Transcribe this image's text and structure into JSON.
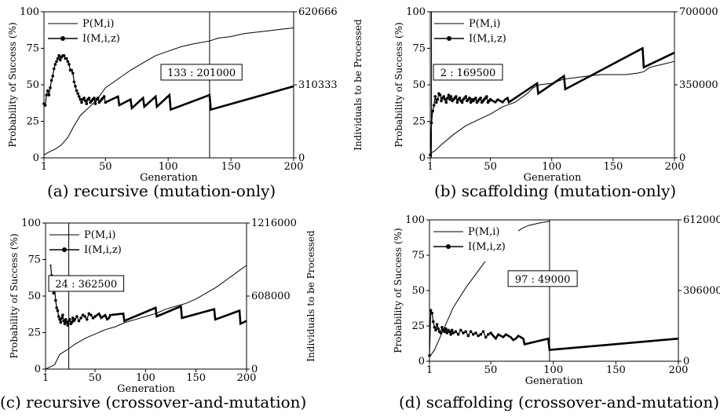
{
  "figure": {
    "captions": [
      "(a) recursive (mutation-only)",
      "(b) scaffolding (mutation-only)",
      "(c) recursive (crossover-and-mutation)",
      "(d) scaffolding (crossover-and-mutation)"
    ]
  },
  "chart_data": [
    {
      "type": "line",
      "xlabel": "Generation",
      "ylabel": "Probability of Success (%)",
      "y2label": "Individuals to be Processed",
      "xlim": [
        1,
        200
      ],
      "ylim": [
        0,
        100
      ],
      "y2lim": [
        0,
        620666
      ],
      "xticks": [
        "1",
        "50",
        "100",
        "150",
        "200"
      ],
      "yticks": [
        "0",
        "25",
        "50",
        "75",
        "100"
      ],
      "y2ticks": [
        "0",
        "310333",
        "620666"
      ],
      "legend": {
        "position": "top-left",
        "entries": [
          "P(M,i)",
          "I(M,i,z)"
        ]
      },
      "marker": {
        "x": 133,
        "label": "133 : 201000"
      },
      "series": [
        {
          "name": "P(M,i)",
          "axis": "left",
          "x": [
            1,
            5,
            10,
            15,
            20,
            25,
            30,
            35,
            40,
            45,
            50,
            60,
            70,
            80,
            90,
            100,
            110,
            120,
            133,
            140,
            150,
            160,
            170,
            180,
            190,
            200
          ],
          "values": [
            2,
            4,
            6,
            9,
            14,
            22,
            29,
            33,
            37,
            42,
            48,
            54,
            60,
            65,
            70,
            73,
            76,
            78,
            80,
            82,
            83,
            85,
            86,
            87,
            88,
            89
          ]
        },
        {
          "name": "I(M,i,z)",
          "axis": "left",
          "x": [
            1,
            2,
            3,
            4,
            5,
            6,
            7,
            8,
            9,
            10,
            11,
            12,
            13,
            14,
            15,
            16,
            17,
            18,
            19,
            20,
            21,
            22,
            23,
            24,
            25,
            26,
            27,
            28,
            29,
            30,
            31,
            32,
            33,
            34,
            35,
            36,
            37,
            38,
            39,
            40,
            41,
            42,
            43,
            44,
            45,
            46,
            47,
            48,
            49,
            50,
            60,
            61,
            70,
            71,
            80,
            81,
            90,
            91,
            101,
            102,
            133,
            134,
            200
          ],
          "values": [
            37,
            36,
            43,
            46,
            43,
            48,
            53,
            56,
            61,
            64,
            66,
            68,
            70,
            67,
            69,
            70,
            70,
            68,
            68,
            66,
            64,
            60,
            60,
            58,
            52,
            49,
            46,
            44,
            42,
            40,
            38,
            40,
            41,
            39,
            37,
            40,
            41,
            38,
            39,
            40,
            41,
            37,
            40,
            41,
            38,
            39,
            40,
            41,
            42,
            38,
            42,
            36,
            40,
            34,
            41,
            35,
            42,
            35,
            43,
            33,
            43,
            33,
            49
          ]
        }
      ]
    },
    {
      "type": "line",
      "xlabel": "Generation",
      "ylabel": "Probability of Success (%)",
      "y2label": "Individuals to be Processed",
      "xlim": [
        1,
        200
      ],
      "ylim": [
        0,
        100
      ],
      "y2lim": [
        0,
        700000
      ],
      "xticks": [
        "1",
        "50",
        "100",
        "150",
        "200"
      ],
      "yticks": [
        "0",
        "25",
        "50",
        "75",
        "100"
      ],
      "y2ticks": [
        "0",
        "350000",
        "700000"
      ],
      "legend": {
        "position": "top-left",
        "entries": [
          "P(M,i)",
          "I(M,i,z)"
        ]
      },
      "marker": {
        "x": 2,
        "label": "2 : 169500"
      },
      "series": [
        {
          "name": "P(M,i)",
          "axis": "left",
          "x": [
            1,
            5,
            10,
            20,
            30,
            40,
            50,
            60,
            70,
            80,
            85,
            90,
            100,
            110,
            120,
            130,
            140,
            150,
            160,
            170,
            175,
            180,
            190,
            200
          ],
          "values": [
            3,
            5,
            9,
            16,
            22,
            26,
            30,
            35,
            38,
            44,
            48,
            50,
            51,
            54,
            55,
            56,
            57,
            57,
            57,
            58,
            59,
            62,
            64,
            66
          ]
        },
        {
          "name": "I(M,i,z)",
          "axis": "left",
          "x": [
            1,
            2,
            3,
            4,
            5,
            6,
            7,
            8,
            9,
            10,
            11,
            12,
            13,
            14,
            15,
            16,
            17,
            18,
            19,
            20,
            21,
            22,
            23,
            24,
            25,
            26,
            27,
            28,
            29,
            30,
            31,
            32,
            33,
            34,
            35,
            36,
            37,
            38,
            39,
            40,
            41,
            42,
            43,
            44,
            45,
            46,
            47,
            48,
            49,
            50,
            52,
            54,
            56,
            58,
            60,
            62,
            64,
            65,
            88,
            89,
            110,
            111,
            174,
            175,
            200
          ],
          "values": [
            2,
            24,
            32,
            36,
            42,
            38,
            40,
            44,
            43,
            39,
            41,
            42,
            40,
            38,
            41,
            43,
            40,
            42,
            39,
            40,
            41,
            42,
            38,
            40,
            41,
            39,
            38,
            40,
            41,
            42,
            39,
            40,
            41,
            38,
            40,
            39,
            40,
            41,
            38,
            39,
            40,
            41,
            38,
            39,
            40,
            41,
            42,
            38,
            39,
            40,
            39,
            38,
            40,
            39,
            38,
            40,
            41,
            38,
            51,
            44,
            56,
            47,
            75,
            62,
            72
          ]
        }
      ]
    },
    {
      "type": "line",
      "xlabel": "Generation",
      "ylabel": "Probability of Success (%)",
      "y2label": "Individuals to be Processed",
      "xlim": [
        1,
        200
      ],
      "ylim": [
        0,
        100
      ],
      "y2lim": [
        0,
        1216000
      ],
      "xticks": [
        "1",
        "50",
        "100",
        "150",
        "200"
      ],
      "yticks": [
        "0",
        "25",
        "50",
        "75",
        "100"
      ],
      "y2ticks": [
        "0",
        "608000",
        "1216000"
      ],
      "legend": {
        "position": "top-left",
        "entries": [
          "P(M,i)",
          "I(M,i,z)"
        ]
      },
      "marker": {
        "x": 24,
        "label": "24 : 362500"
      },
      "series": [
        {
          "name": "P(M,i)",
          "axis": "left",
          "x": [
            1,
            10,
            15,
            24,
            30,
            40,
            50,
            60,
            70,
            80,
            90,
            100,
            110,
            120,
            130,
            140,
            150,
            160,
            170,
            180,
            190,
            200
          ],
          "values": [
            0,
            3,
            10,
            14,
            17,
            21,
            24,
            27,
            29,
            32,
            34,
            36,
            38,
            41,
            43,
            45,
            48,
            52,
            56,
            61,
            66,
            71
          ]
        },
        {
          "name": "I(M,i,z)",
          "axis": "left",
          "x": [
            5,
            6,
            7,
            8,
            9,
            10,
            11,
            12,
            13,
            14,
            15,
            16,
            17,
            18,
            19,
            20,
            21,
            22,
            23,
            24,
            25,
            26,
            27,
            28,
            29,
            30,
            32,
            34,
            36,
            38,
            40,
            42,
            44,
            46,
            48,
            50,
            52,
            54,
            56,
            58,
            60,
            62,
            64,
            65,
            78,
            79,
            110,
            111,
            135,
            136,
            168,
            169,
            193,
            194,
            200
          ],
          "values": [
            78,
            72,
            64,
            57,
            52,
            55,
            47,
            42,
            40,
            36,
            34,
            32,
            35,
            37,
            33,
            31,
            34,
            32,
            30,
            33,
            34,
            31,
            32,
            35,
            33,
            34,
            36,
            33,
            35,
            37,
            36,
            34,
            38,
            37,
            35,
            36,
            37,
            38,
            35,
            36,
            37,
            34,
            35,
            37,
            38,
            33,
            42,
            36,
            43,
            35,
            41,
            34,
            40,
            31,
            33
          ]
        }
      ]
    },
    {
      "type": "line",
      "xlabel": "Generation",
      "ylabel": "Probability of Success (%)",
      "y2label": "Individuals to be Processed",
      "xlim": [
        1,
        200
      ],
      "ylim": [
        0,
        100
      ],
      "y2lim": [
        0,
        612000
      ],
      "xticks": [
        "1",
        "50",
        "100",
        "150",
        "200"
      ],
      "yticks": [
        "0",
        "25",
        "50",
        "75",
        "100"
      ],
      "y2ticks": [
        "0",
        "306000",
        "612000"
      ],
      "legend": {
        "position": "top-left",
        "entries": [
          "P(M,i)",
          "I(M,i,z)"
        ]
      },
      "marker": {
        "x": 97,
        "label": "97 : 49000"
      },
      "series": [
        {
          "name": "P(M,i)",
          "axis": "left",
          "x": [
            1,
            5,
            10,
            15,
            20,
            25,
            30,
            35,
            40,
            45,
            50,
            55,
            60,
            65,
            70,
            75,
            80,
            85,
            90,
            97
          ],
          "values": [
            3,
            8,
            18,
            28,
            38,
            45,
            52,
            58,
            64,
            70,
            75,
            80,
            84,
            88,
            91,
            94,
            96,
            97,
            98,
            99
          ]
        },
        {
          "name": "I(M,i,z)",
          "axis": "left",
          "x": [
            1,
            2,
            3,
            4,
            5,
            6,
            7,
            8,
            9,
            10,
            11,
            12,
            13,
            14,
            15,
            16,
            17,
            18,
            19,
            20,
            22,
            24,
            26,
            28,
            30,
            32,
            34,
            36,
            38,
            40,
            42,
            44,
            46,
            48,
            50,
            52,
            54,
            56,
            58,
            60,
            62,
            64,
            66,
            68,
            70,
            72,
            74,
            76,
            77,
            96,
            97,
            200
          ],
          "values": [
            4,
            36,
            34,
            28,
            24,
            22,
            26,
            23,
            21,
            20,
            24,
            22,
            21,
            23,
            20,
            22,
            21,
            19,
            22,
            20,
            21,
            19,
            22,
            20,
            21,
            18,
            21,
            19,
            20,
            18,
            19,
            21,
            17,
            19,
            20,
            18,
            16,
            19,
            18,
            17,
            19,
            18,
            17,
            15,
            16,
            18,
            17,
            16,
            12,
            16,
            8,
            16
          ]
        }
      ]
    }
  ]
}
